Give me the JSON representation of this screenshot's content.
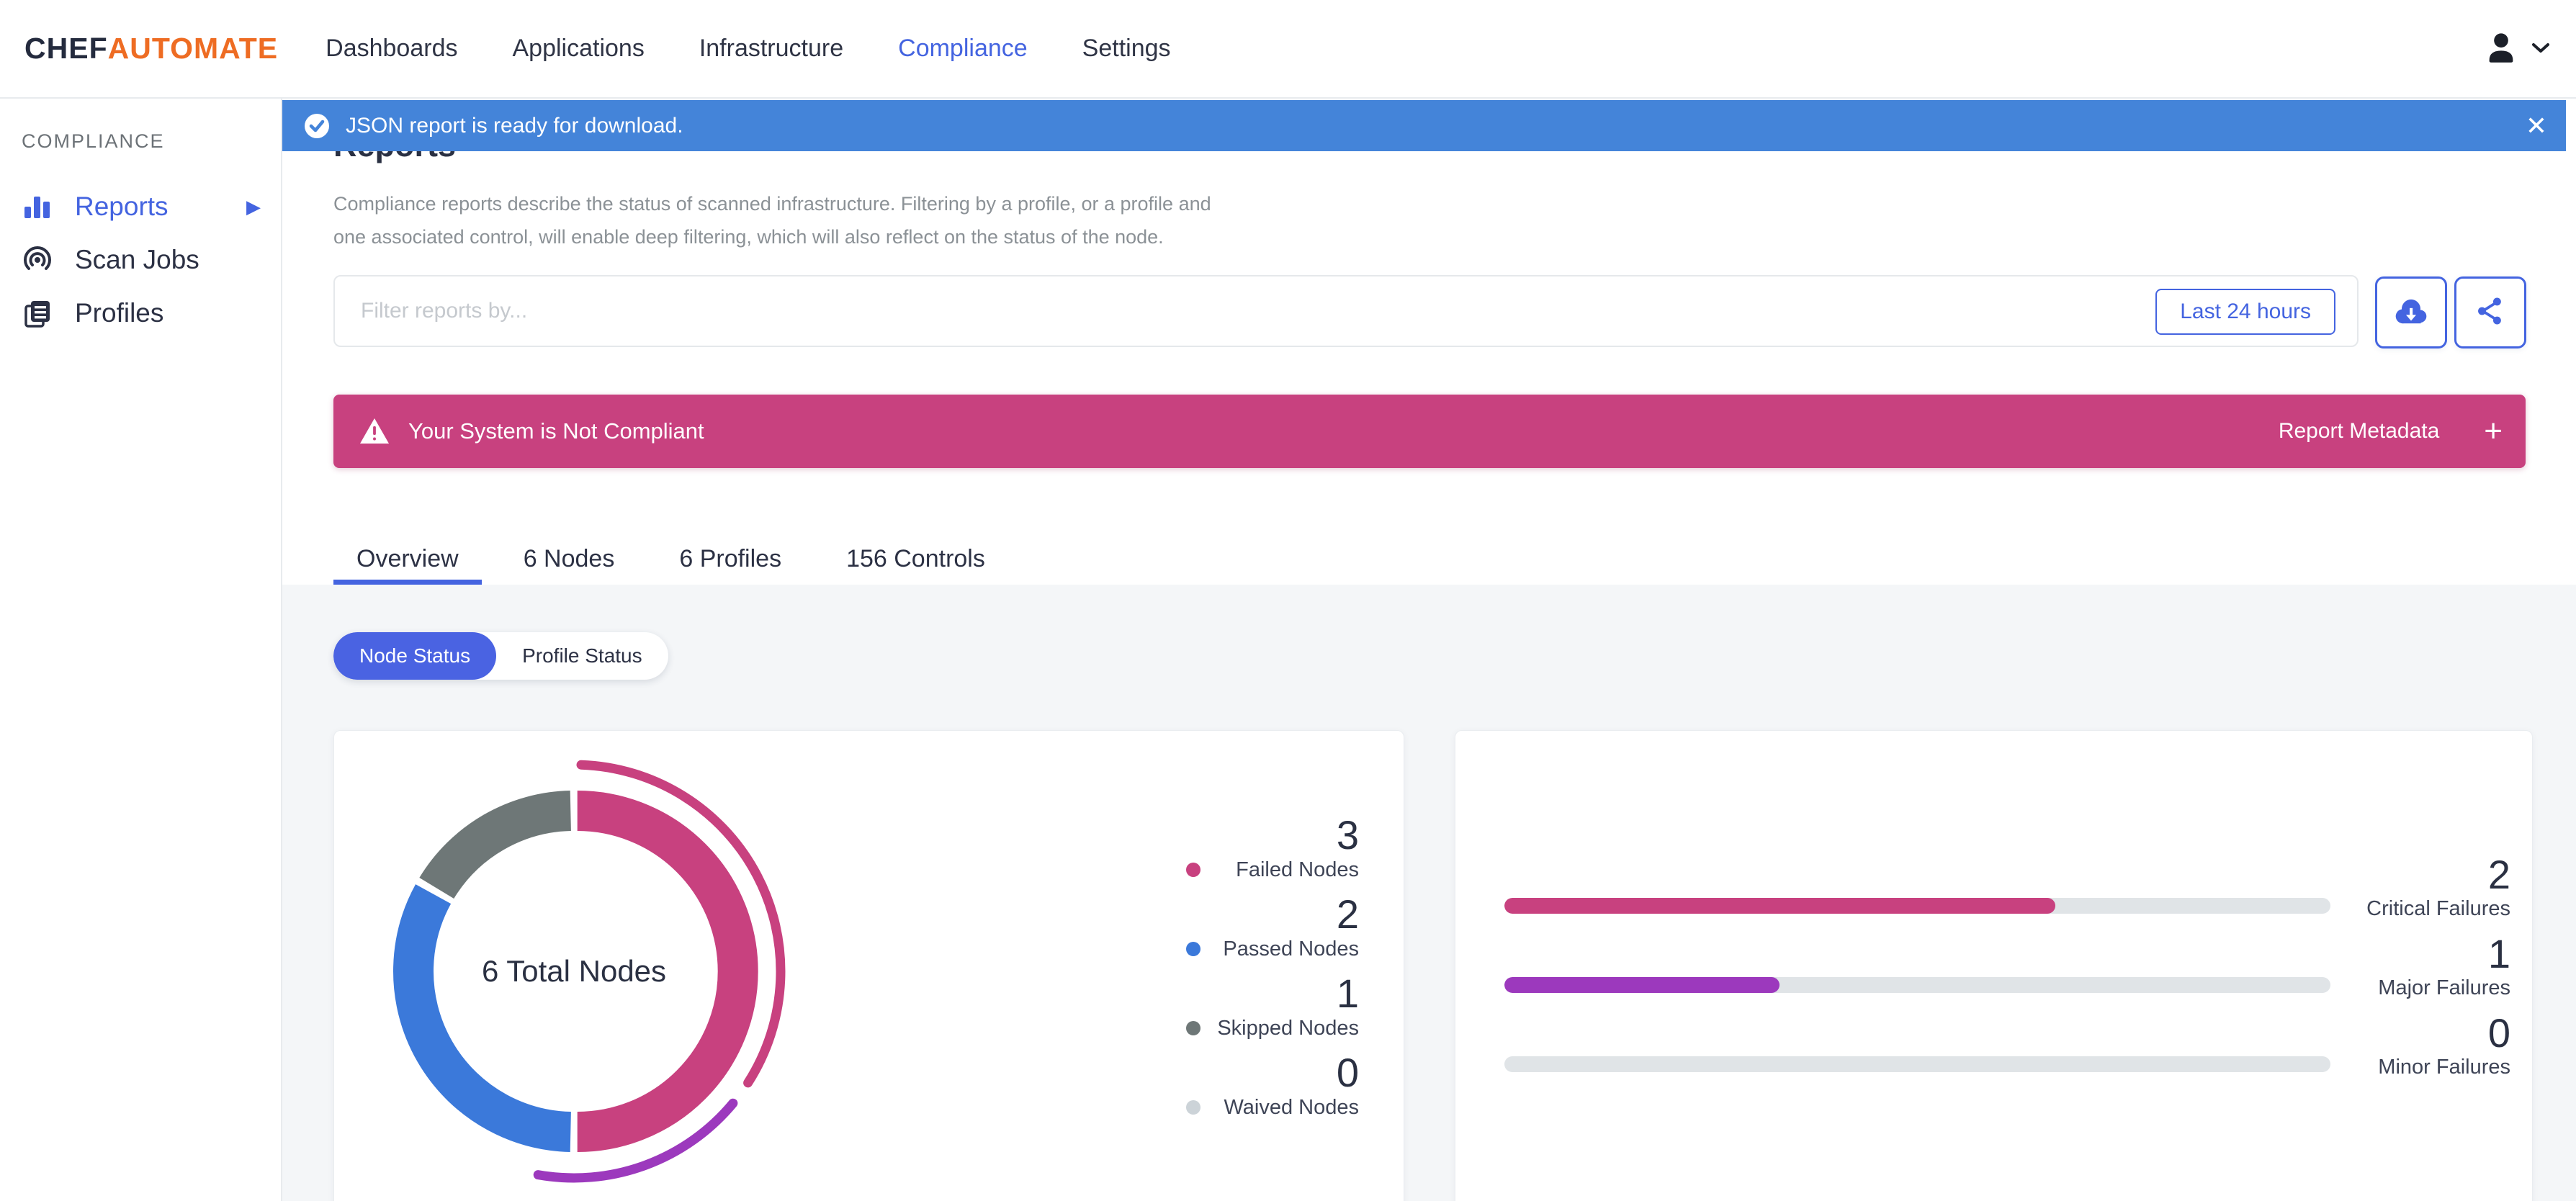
{
  "colors": {
    "accent_blue": "#4464e0",
    "info_banner_blue": "#4484d9",
    "passed_blue": "#3b79da",
    "failed_magenta": "#c8417f",
    "major_purple": "#9c39bd",
    "skipped_gray": "#6e7777",
    "waived_gray": "#ccd3d8",
    "brand_orange": "#ee6c23",
    "track_gray": "#e0e4e7"
  },
  "header": {
    "logo_chef": "CHEF",
    "logo_automate": "AUTOMATE",
    "nav": [
      {
        "label": "Dashboards",
        "active": false
      },
      {
        "label": "Applications",
        "active": false
      },
      {
        "label": "Infrastructure",
        "active": false
      },
      {
        "label": "Compliance",
        "active": true
      },
      {
        "label": "Settings",
        "active": false
      }
    ]
  },
  "notification": {
    "message": "JSON report is ready for download.",
    "close_label": "✕"
  },
  "sidebar": {
    "section_label": "COMPLIANCE",
    "items": [
      {
        "label": "Reports",
        "active": true
      },
      {
        "label": "Scan Jobs",
        "active": false
      },
      {
        "label": "Profiles",
        "active": false
      }
    ]
  },
  "reports_page": {
    "title": "Reports",
    "description_line1": "Compliance reports describe the status of scanned infrastructure. Filtering by a profile, or a profile and",
    "description_line2": "one associated control, will enable deep filtering, which will also reflect on the status of the node.",
    "filter_placeholder": "Filter reports by...",
    "time_range_label": "Last 24 hours",
    "status_banner": {
      "message": "Your System is Not Compliant",
      "metadata_label": "Report Metadata",
      "expand_symbol": "+"
    },
    "tabs": [
      {
        "label": "Overview",
        "active": true
      },
      {
        "label": "6 Nodes",
        "active": false
      },
      {
        "label": "6 Profiles",
        "active": false
      },
      {
        "label": "156 Controls",
        "active": false
      }
    ],
    "status_toggle": [
      {
        "label": "Node Status",
        "active": true
      },
      {
        "label": "Profile Status",
        "active": false
      }
    ]
  },
  "chart_data": [
    {
      "type": "pie",
      "subtype": "donut",
      "title": "Node Status",
      "center_label": "6 Total Nodes",
      "total": 6,
      "legend_position": "right",
      "segments": [
        {
          "label": "Failed Nodes",
          "value": 3,
          "color": "#c8417f"
        },
        {
          "label": "Passed Nodes",
          "value": 2,
          "color": "#3b79da"
        },
        {
          "label": "Skipped Nodes",
          "value": 1,
          "color": "#6e7777"
        },
        {
          "label": "Waived Nodes",
          "value": 0,
          "color": "#ccd3d8"
        }
      ],
      "outer_severity_arcs": [
        {
          "label": "Critical",
          "value": 2,
          "color": "#c8417f"
        },
        {
          "label": "Major",
          "value": 1,
          "color": "#9c39bd"
        },
        {
          "label": "Minor",
          "value": 0,
          "color": "#e0e4e7"
        }
      ]
    },
    {
      "type": "bar",
      "orientation": "horizontal",
      "scale_max": 3,
      "track_color": "#e0e4e7",
      "items": [
        {
          "label": "Critical Failures",
          "value": 2,
          "color": "#c8417f"
        },
        {
          "label": "Major Failures",
          "value": 1,
          "color": "#9c39bd"
        },
        {
          "label": "Minor Failures",
          "value": 0,
          "color": "#e0e4e7"
        }
      ]
    }
  ]
}
